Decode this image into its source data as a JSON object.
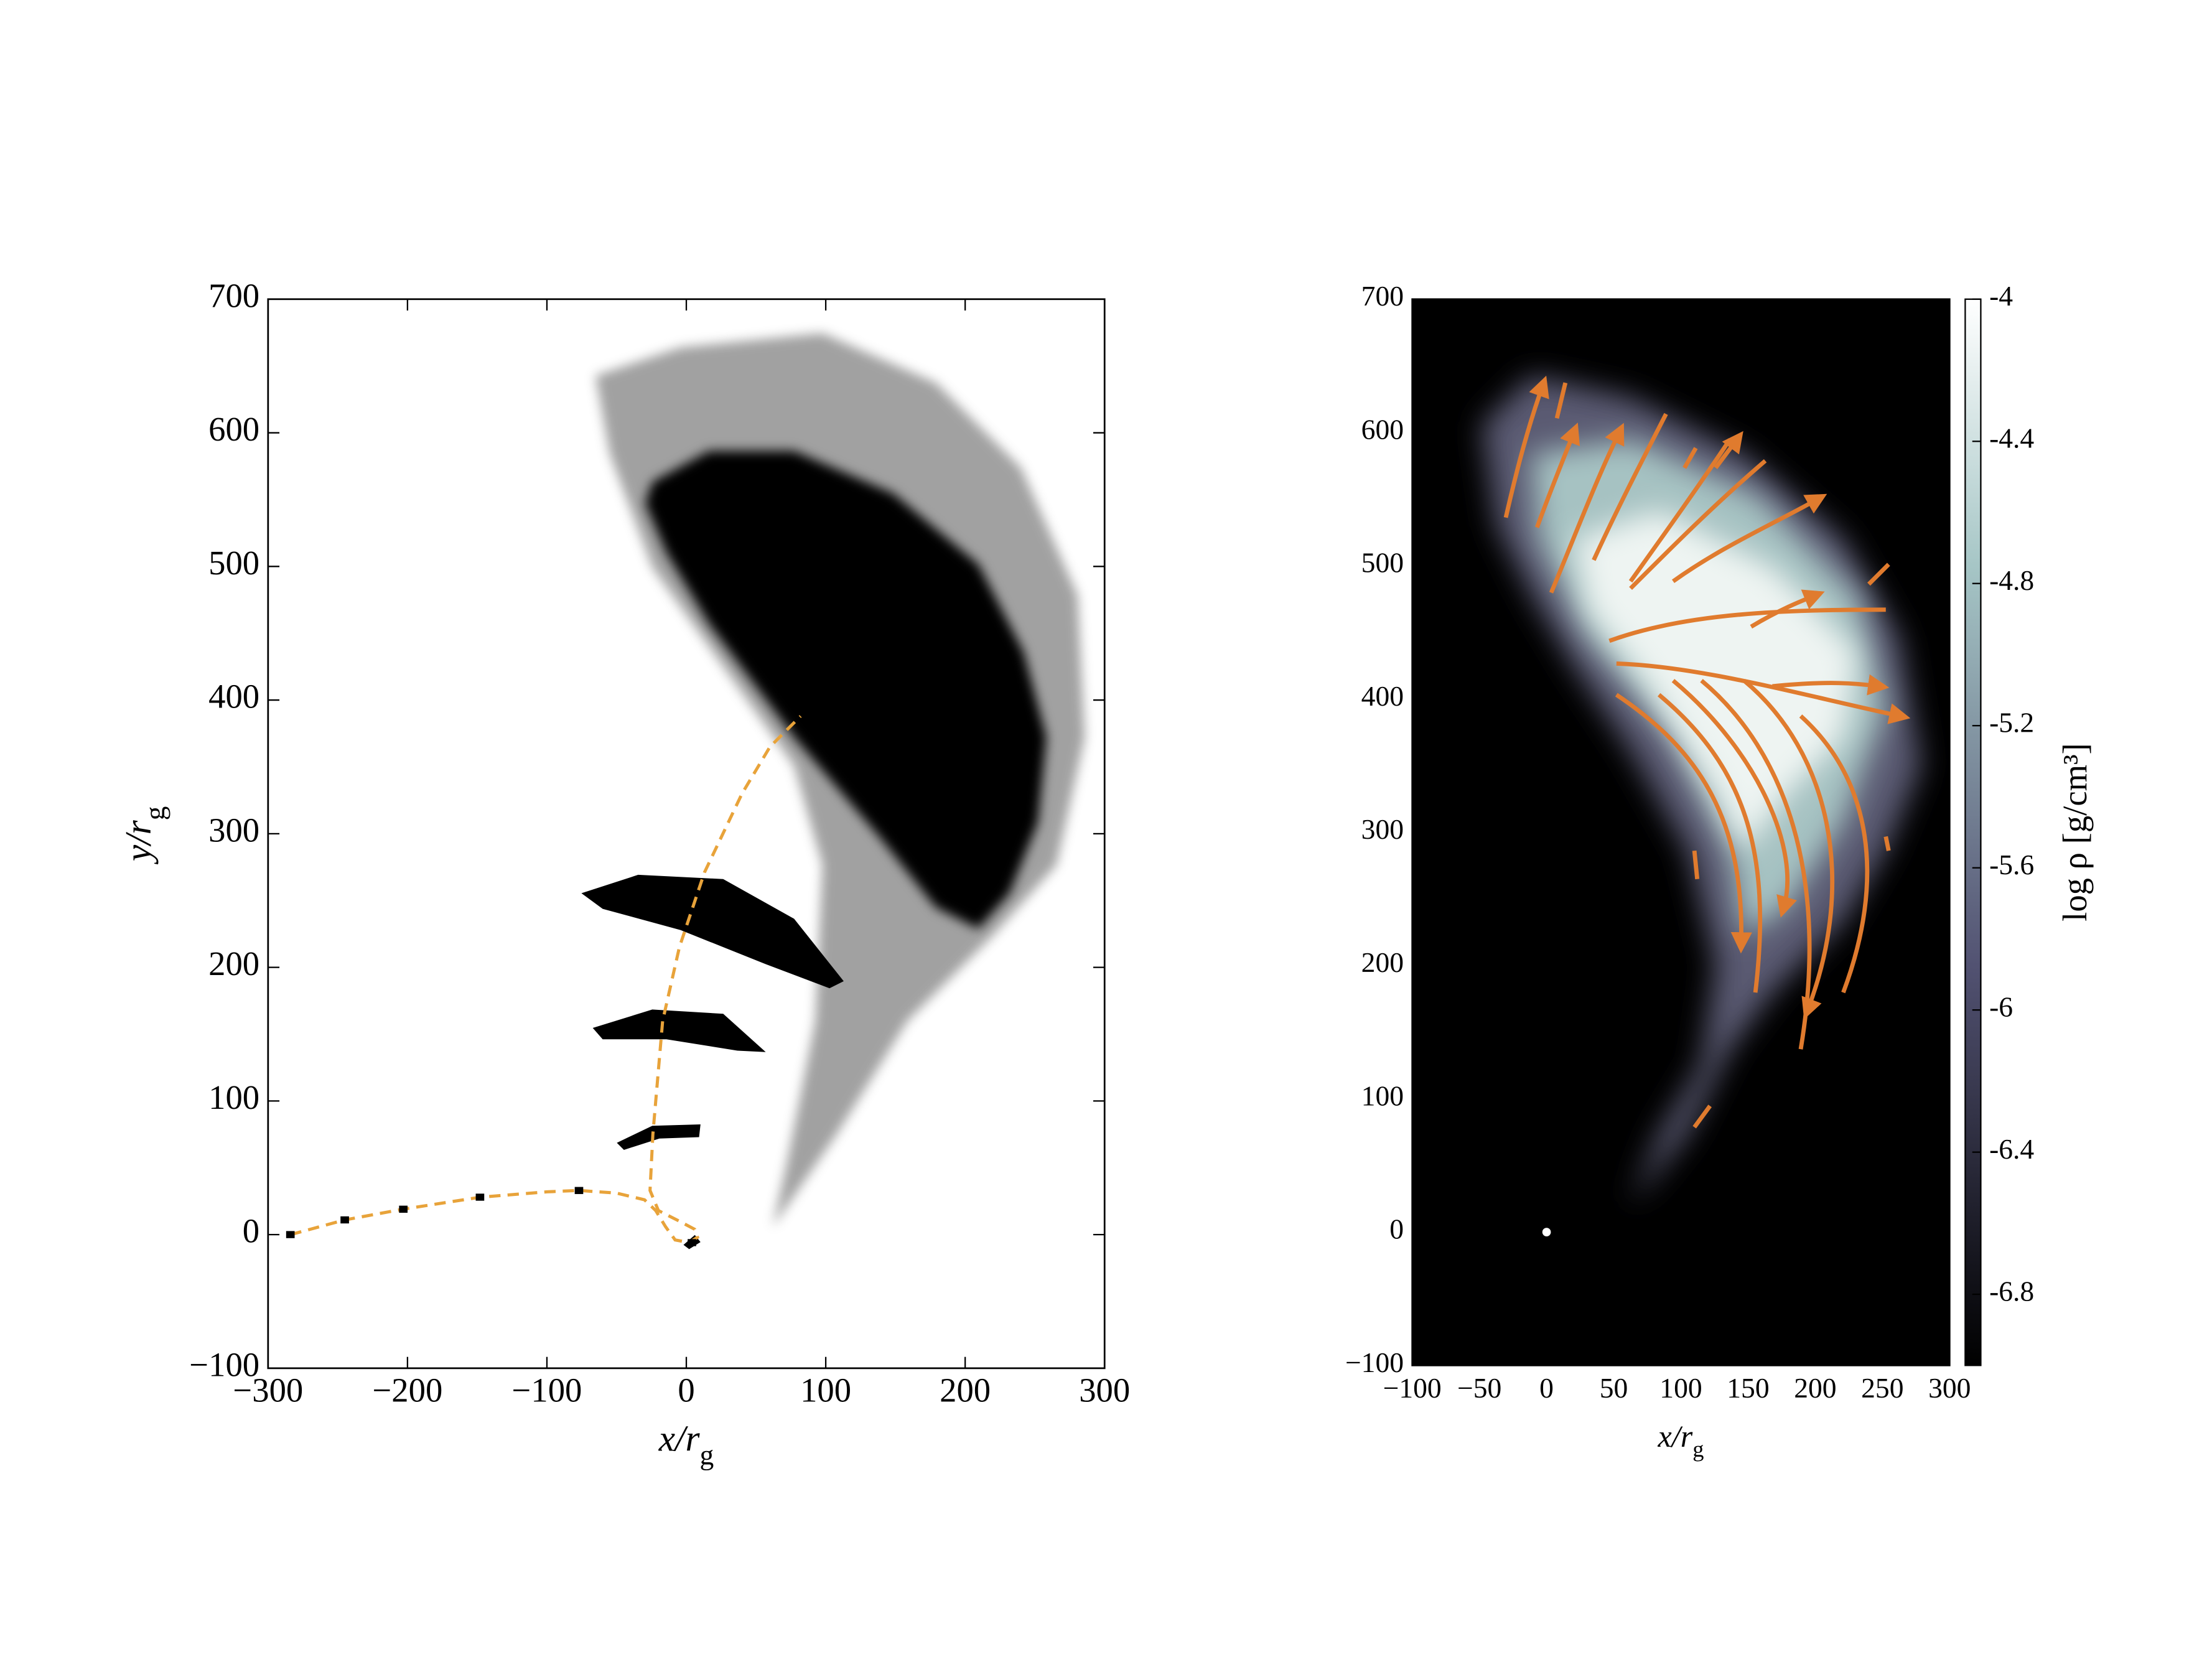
{
  "chart_data": [
    {
      "type": "scatter",
      "xlabel": {
        "text": "x/r",
        "subscript": "g"
      },
      "ylabel": {
        "text": "y/r",
        "subscript": "g"
      },
      "xlim": [
        -300,
        300
      ],
      "ylim": [
        -100,
        700
      ],
      "xticks": [
        {
          "value": -300,
          "label": "−300"
        },
        {
          "value": -200,
          "label": "−200"
        },
        {
          "value": -100,
          "label": "−100"
        },
        0,
        100,
        200,
        300
      ],
      "yticks": [
        {
          "value": -100,
          "label": "−100"
        },
        0,
        100,
        200,
        300,
        400,
        500,
        600,
        700
      ],
      "x": [
        -284,
        -245,
        -203,
        -148,
        -77,
        4
      ],
      "y": [
        0,
        11,
        19,
        28,
        33,
        -6
      ],
      "color": "#000000",
      "trajectory": {
        "color": "#e8a33a",
        "x": [
          -284,
          -245,
          -203,
          -148,
          -100,
          -77,
          -50,
          -30,
          -22,
          -15,
          -8,
          2,
          8,
          6,
          -5,
          -20,
          -26,
          -24,
          -17,
          -5,
          13,
          40,
          60,
          82
        ],
        "y": [
          0,
          11,
          19,
          28,
          32,
          33,
          31,
          26,
          18,
          6,
          -4,
          -6,
          -2,
          4,
          10,
          18,
          33,
          75,
          160,
          215,
          271,
          330,
          365,
          388
        ]
      }
    },
    {
      "type": "image",
      "xlabel": {
        "text": "x/r",
        "subscript": "g"
      },
      "xlim": [
        -100,
        300
      ],
      "ylim": [
        -100,
        700
      ],
      "xticks": [
        {
          "value": -100,
          "label": "−100"
        },
        {
          "value": -50,
          "label": "−50"
        },
        0,
        50,
        100,
        150,
        200,
        250,
        300
      ],
      "yticks": [
        {
          "value": -100,
          "label": "−100"
        },
        0,
        100,
        200,
        300,
        400,
        500,
        600,
        700
      ],
      "marker": {
        "x": [
          0
        ],
        "y": [
          0
        ],
        "color": "#ffffff"
      },
      "stream_color": "#e07b2e",
      "colorbar": {
        "label": "log ρ [g/cm³]",
        "clim": [
          -7,
          -4
        ],
        "ticks": [
          -4,
          -4.4,
          -4.8,
          -5.2,
          -5.6,
          -6,
          -6.4,
          -6.8
        ]
      }
    }
  ]
}
